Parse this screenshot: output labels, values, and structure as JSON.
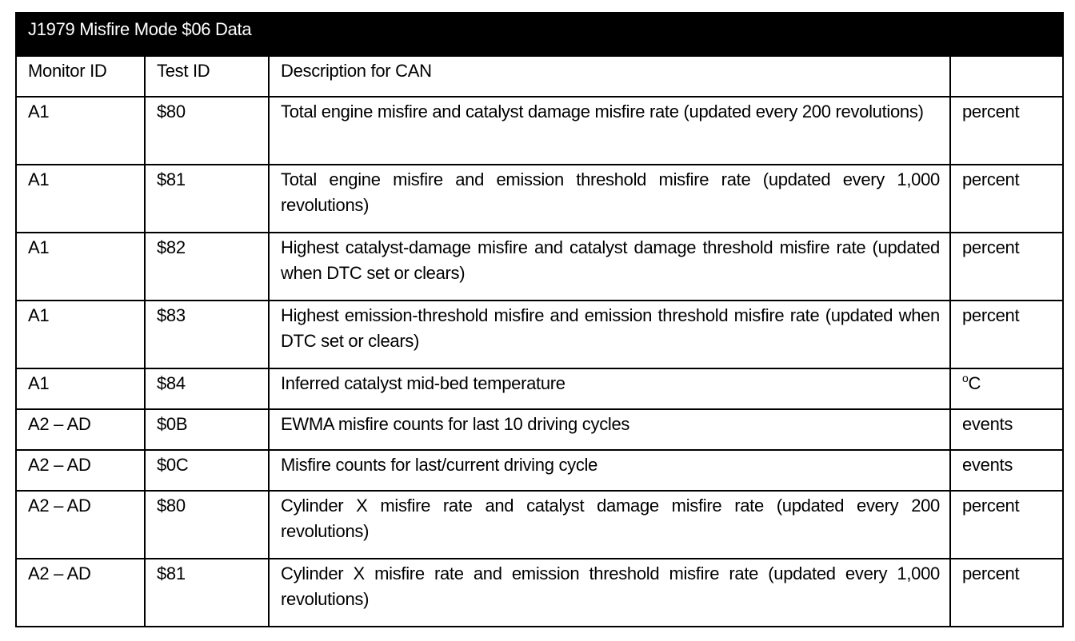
{
  "title": "J1979 Misfire Mode $06 Data",
  "columns": [
    "Monitor ID",
    "Test ID",
    "Description for CAN",
    ""
  ],
  "rows": [
    {
      "monitor": "A1",
      "test": "$80",
      "description": "Total engine misfire and catalyst damage misfire rate (updated every 200 revolutions)",
      "unit": "percent"
    },
    {
      "monitor": "A1",
      "test": "$81",
      "description": "Total engine misfire and emission threshold misfire rate (updated every 1,000 revolutions)",
      "unit": "percent"
    },
    {
      "monitor": "A1",
      "test": "$82",
      "description": "Highest catalyst-damage misfire and catalyst damage threshold misfire rate (updated when DTC set or clears)",
      "unit": "percent"
    },
    {
      "monitor": "A1",
      "test": "$83",
      "description": "Highest emission-threshold misfire and emission threshold misfire rate (updated when DTC set or clears)",
      "unit": "percent"
    },
    {
      "monitor": "A1",
      "test": "$84",
      "description": "Inferred catalyst mid-bed temperature",
      "unit": "°C"
    },
    {
      "monitor": "A2 – AD",
      "test": "$0B",
      "description": "EWMA misfire counts for last 10 driving cycles",
      "unit": "events"
    },
    {
      "monitor": "A2 – AD",
      "test": "$0C",
      "description": "Misfire counts for last/current driving cycle",
      "unit": "events"
    },
    {
      "monitor": "A2 – AD",
      "test": "$80",
      "description": "Cylinder X misfire rate and catalyst damage misfire rate (updated every 200 revolutions)",
      "unit": "percent"
    },
    {
      "monitor": "A2 – AD",
      "test": "$81",
      "description": "Cylinder X misfire rate and emission threshold misfire rate (updated every 1,000 revolutions)",
      "unit": "percent"
    }
  ]
}
